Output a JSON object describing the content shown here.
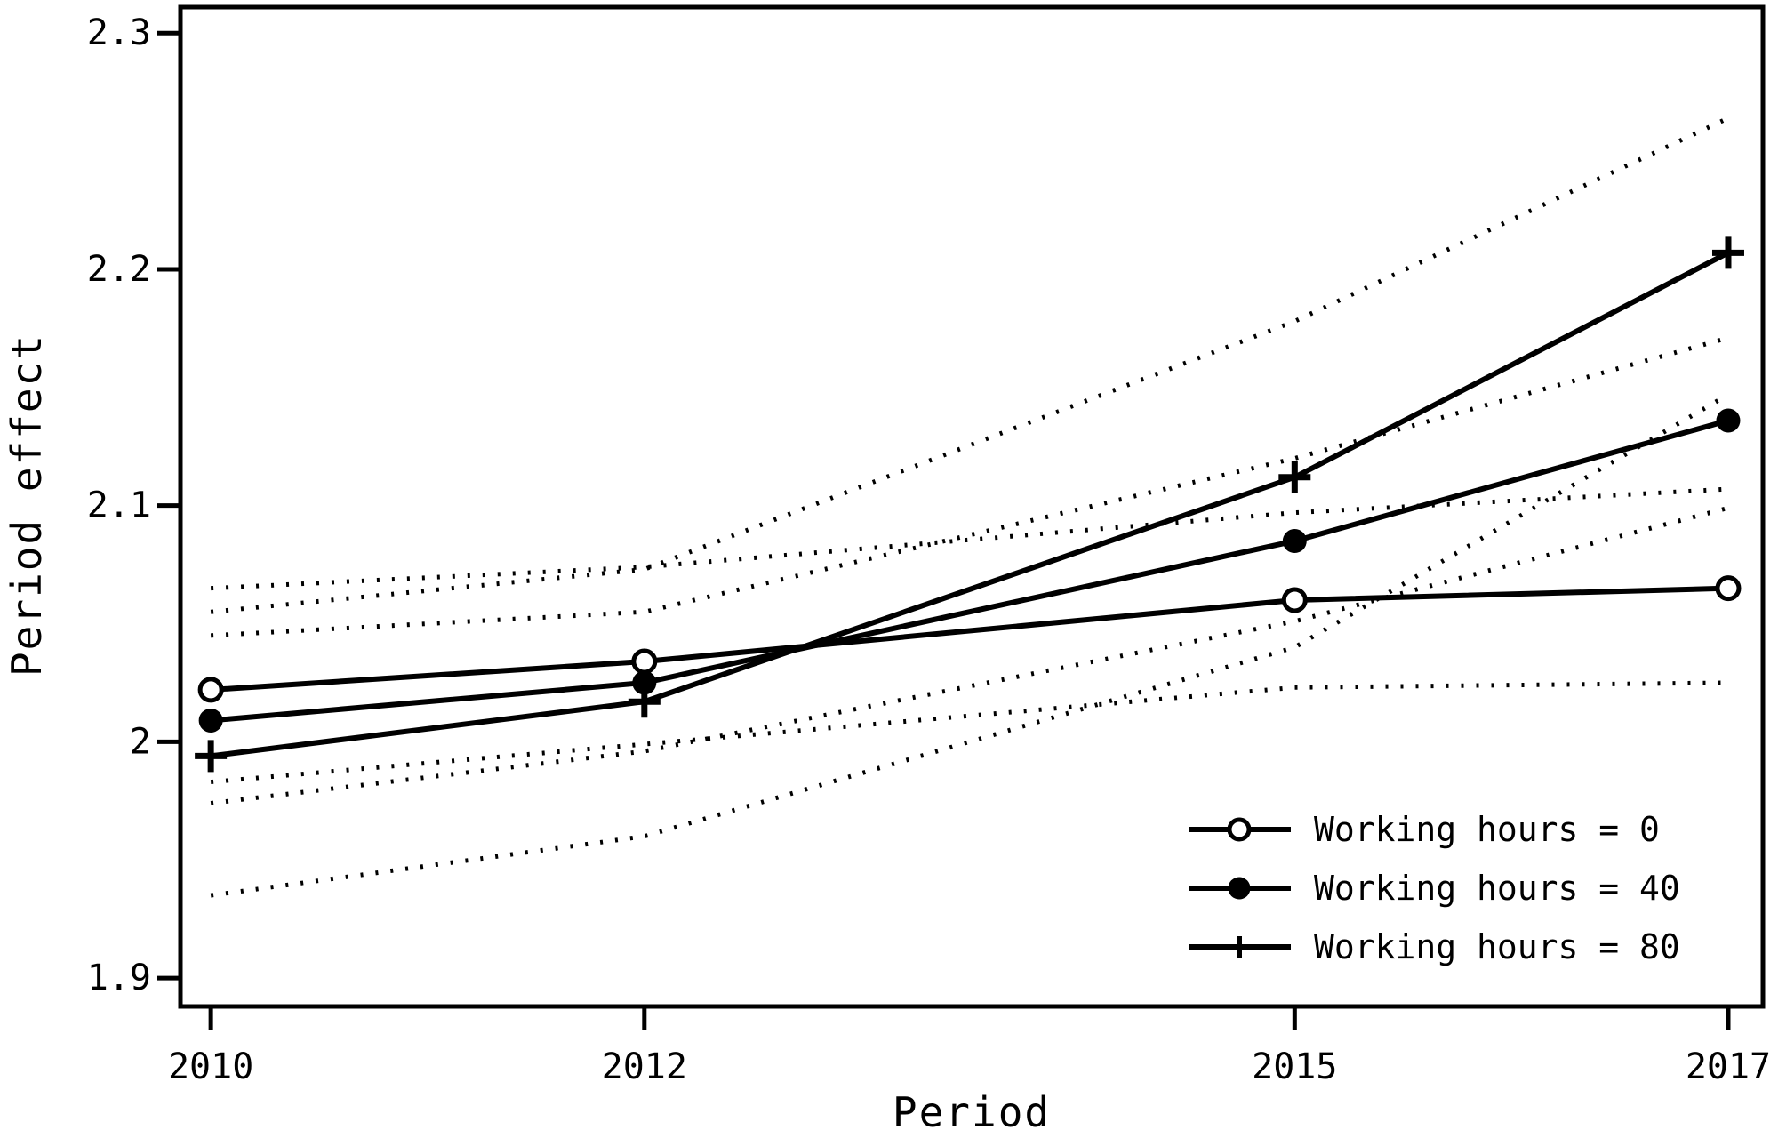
{
  "figure": {
    "background": "#ffffff",
    "ink": "#000000"
  },
  "chart_data": {
    "type": "line",
    "title": "",
    "xlabel": "Period",
    "ylabel": "Period effect",
    "x": [
      2010,
      2012,
      2015,
      2017
    ],
    "x_tick_labels": [
      "2010",
      "2012",
      "2015",
      "2017"
    ],
    "y_ticks": [
      1.9,
      2.0,
      2.1,
      2.2,
      2.3
    ],
    "y_tick_labels": [
      "1.9",
      "2",
      "2.1",
      "2.2",
      "2.3"
    ],
    "xlim": [
      2009.86,
      2017.16
    ],
    "ylim": [
      1.888,
      2.311
    ],
    "grid": false,
    "legend_position": "inside-bottom-right",
    "ci_style": "dotted",
    "series": [
      {
        "name": "Working hours = 0",
        "marker": "open-circle",
        "line": "solid",
        "values": [
          2.022,
          2.034,
          2.06,
          2.065
        ],
        "ci_upper": [
          2.065,
          2.074,
          2.097,
          2.107
        ],
        "ci_lower": [
          1.983,
          1.999,
          2.023,
          2.025
        ]
      },
      {
        "name": "Working hours = 40",
        "marker": "filled-circle",
        "line": "solid",
        "values": [
          2.009,
          2.025,
          2.085,
          2.136
        ],
        "ci_upper": [
          2.045,
          2.055,
          2.12,
          2.171
        ],
        "ci_lower": [
          1.974,
          1.996,
          2.051,
          2.099
        ]
      },
      {
        "name": "Working hours = 80",
        "marker": "plus",
        "line": "solid",
        "values": [
          1.994,
          2.017,
          2.112,
          2.207
        ],
        "ci_upper": [
          2.055,
          2.073,
          2.178,
          2.264
        ],
        "ci_lower": [
          1.935,
          1.96,
          2.04,
          2.147
        ]
      }
    ]
  }
}
